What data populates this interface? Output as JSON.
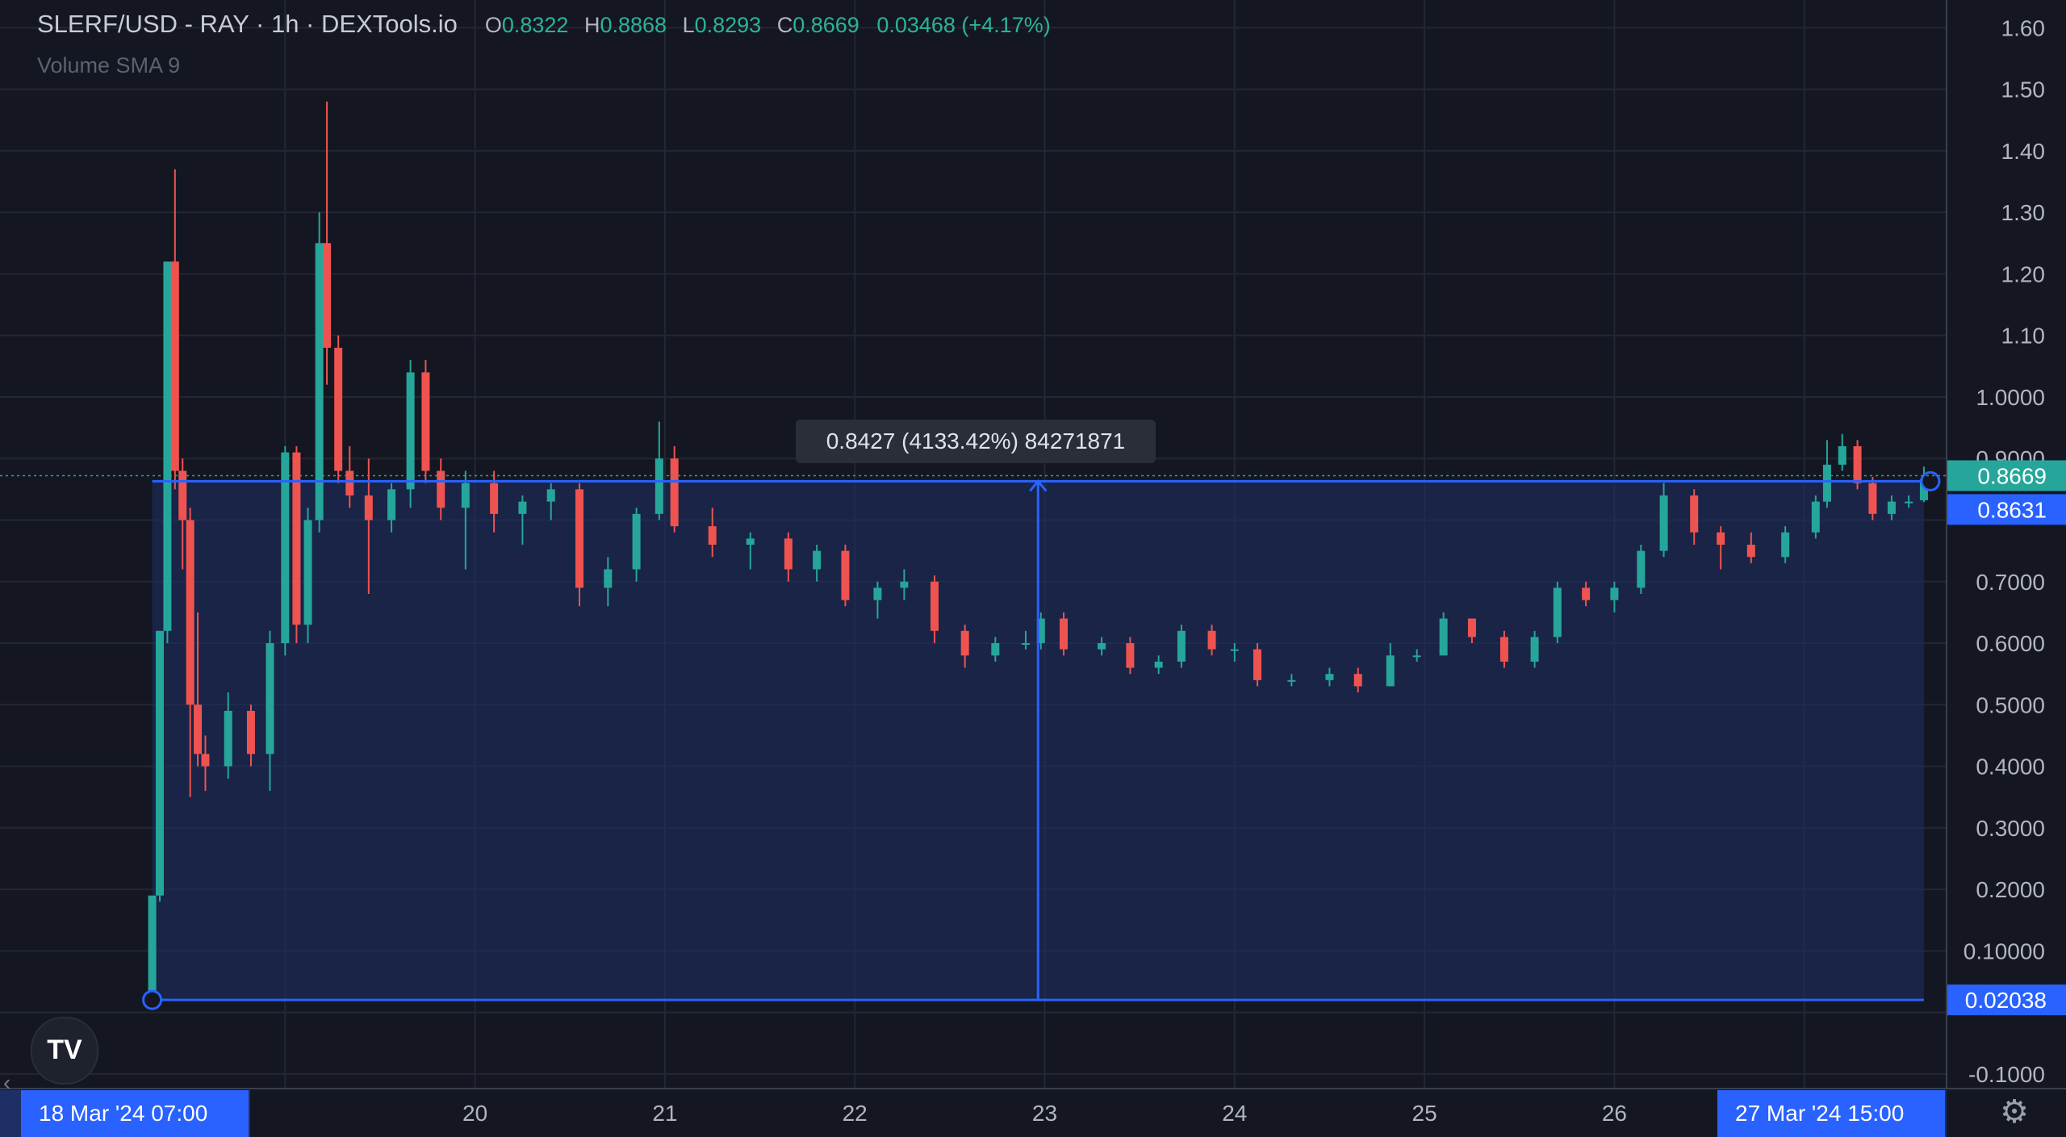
{
  "header": {
    "title": "SLERF/USD - RAY · 1h · DEXTools.io",
    "o_label": "O",
    "o_value": "0.8322",
    "h_label": "H",
    "h_value": "0.8868",
    "l_label": "L",
    "l_value": "0.8293",
    "c_label": "C",
    "c_value": "0.8669",
    "change": "0.03468 (+4.17%)"
  },
  "indicator_label": "Volume SMA 9",
  "measure_tooltip": "0.8427 (4133.42%) 84271871",
  "price_badges": {
    "current": "0.8669",
    "top": "0.8631",
    "bottom": "0.02038"
  },
  "time_badges": {
    "start": "18 Mar '24   07:00",
    "end": "27 Mar '24   15:00"
  },
  "logo_text": "TV",
  "icons": [
    "tradingview-logo-icon",
    "settings-gear-icon",
    "scroll-left-icon"
  ],
  "colors": {
    "up": "#26a69a",
    "down": "#ef5350",
    "accent": "#2962ff",
    "background": "#141722"
  },
  "chart_data": {
    "type": "candlestick",
    "title": "SLERF/USD - RAY · 1h · DEXTools.io",
    "y_ticks": [
      "1.60",
      "1.50",
      "1.40",
      "1.30",
      "1.20",
      "1.10",
      "1.0000",
      "0.9000",
      "0.7000",
      "0.6000",
      "0.5000",
      "0.4000",
      "0.3000",
      "0.2000",
      "0.10000",
      "-0.1000"
    ],
    "y_tick_values": [
      1.6,
      1.5,
      1.4,
      1.3,
      1.2,
      1.1,
      1.0,
      0.9,
      0.7,
      0.6,
      0.5,
      0.4,
      0.3,
      0.2,
      0.1,
      -0.1
    ],
    "x_ticks": [
      "20",
      "21",
      "22",
      "23",
      "24",
      "25",
      "26"
    ],
    "x_tick_days": [
      20,
      21,
      22,
      23,
      24,
      25,
      26
    ],
    "ylim": [
      -0.125,
      1.645
    ],
    "xlim_days": [
      18.02,
      28.4
    ],
    "grid": true,
    "measure_range": {
      "from_price": 0.02038,
      "to_price": 0.8631,
      "change": 0.8427,
      "percent": 4133.42,
      "from_day": 18.3,
      "to_day": 27.63
    },
    "current_price": 0.8669,
    "candles_ohlc_approx": [
      {
        "t": 18.3,
        "o": 0.02,
        "h": 0.02,
        "l": 0.02,
        "c": 0.19
      },
      {
        "t": 18.34,
        "o": 0.19,
        "h": 0.62,
        "l": 0.18,
        "c": 0.62
      },
      {
        "t": 18.38,
        "o": 0.62,
        "h": 1.22,
        "l": 0.6,
        "c": 1.22
      },
      {
        "t": 18.42,
        "o": 1.22,
        "h": 1.37,
        "l": 0.85,
        "c": 0.88
      },
      {
        "t": 18.46,
        "o": 0.88,
        "h": 0.9,
        "l": 0.72,
        "c": 0.8
      },
      {
        "t": 18.5,
        "o": 0.8,
        "h": 0.82,
        "l": 0.35,
        "c": 0.5
      },
      {
        "t": 18.54,
        "o": 0.5,
        "h": 0.65,
        "l": 0.4,
        "c": 0.42
      },
      {
        "t": 18.58,
        "o": 0.42,
        "h": 0.45,
        "l": 0.36,
        "c": 0.4
      },
      {
        "t": 18.7,
        "o": 0.4,
        "h": 0.52,
        "l": 0.38,
        "c": 0.49
      },
      {
        "t": 18.82,
        "o": 0.49,
        "h": 0.5,
        "l": 0.4,
        "c": 0.42
      },
      {
        "t": 18.92,
        "o": 0.42,
        "h": 0.62,
        "l": 0.36,
        "c": 0.6
      },
      {
        "t": 19.0,
        "o": 0.6,
        "h": 0.92,
        "l": 0.58,
        "c": 0.91
      },
      {
        "t": 19.06,
        "o": 0.91,
        "h": 0.92,
        "l": 0.6,
        "c": 0.63
      },
      {
        "t": 19.12,
        "o": 0.63,
        "h": 0.82,
        "l": 0.6,
        "c": 0.8
      },
      {
        "t": 19.18,
        "o": 0.8,
        "h": 1.3,
        "l": 0.78,
        "c": 1.25
      },
      {
        "t": 19.22,
        "o": 1.25,
        "h": 1.48,
        "l": 1.02,
        "c": 1.08
      },
      {
        "t": 19.28,
        "o": 1.08,
        "h": 1.1,
        "l": 0.86,
        "c": 0.88
      },
      {
        "t": 19.34,
        "o": 0.88,
        "h": 0.92,
        "l": 0.82,
        "c": 0.84
      },
      {
        "t": 19.44,
        "o": 0.84,
        "h": 0.9,
        "l": 0.68,
        "c": 0.8
      },
      {
        "t": 19.56,
        "o": 0.8,
        "h": 0.86,
        "l": 0.78,
        "c": 0.85
      },
      {
        "t": 19.66,
        "o": 0.85,
        "h": 1.06,
        "l": 0.82,
        "c": 1.04
      },
      {
        "t": 19.74,
        "o": 1.04,
        "h": 1.06,
        "l": 0.86,
        "c": 0.88
      },
      {
        "t": 19.82,
        "o": 0.88,
        "h": 0.9,
        "l": 0.8,
        "c": 0.82
      },
      {
        "t": 19.95,
        "o": 0.82,
        "h": 0.88,
        "l": 0.72,
        "c": 0.86
      },
      {
        "t": 20.1,
        "o": 0.86,
        "h": 0.88,
        "l": 0.78,
        "c": 0.81
      },
      {
        "t": 20.25,
        "o": 0.81,
        "h": 0.84,
        "l": 0.76,
        "c": 0.83
      },
      {
        "t": 20.4,
        "o": 0.83,
        "h": 0.86,
        "l": 0.8,
        "c": 0.85
      },
      {
        "t": 20.55,
        "o": 0.85,
        "h": 0.86,
        "l": 0.66,
        "c": 0.69
      },
      {
        "t": 20.7,
        "o": 0.69,
        "h": 0.74,
        "l": 0.66,
        "c": 0.72
      },
      {
        "t": 20.85,
        "o": 0.72,
        "h": 0.82,
        "l": 0.7,
        "c": 0.81
      },
      {
        "t": 20.97,
        "o": 0.81,
        "h": 0.96,
        "l": 0.8,
        "c": 0.9
      },
      {
        "t": 21.05,
        "o": 0.9,
        "h": 0.92,
        "l": 0.78,
        "c": 0.79
      },
      {
        "t": 21.25,
        "o": 0.79,
        "h": 0.82,
        "l": 0.74,
        "c": 0.76
      },
      {
        "t": 21.45,
        "o": 0.76,
        "h": 0.78,
        "l": 0.72,
        "c": 0.77
      },
      {
        "t": 21.65,
        "o": 0.77,
        "h": 0.78,
        "l": 0.7,
        "c": 0.72
      },
      {
        "t": 21.8,
        "o": 0.72,
        "h": 0.76,
        "l": 0.7,
        "c": 0.75
      },
      {
        "t": 21.95,
        "o": 0.75,
        "h": 0.76,
        "l": 0.66,
        "c": 0.67
      },
      {
        "t": 22.12,
        "o": 0.67,
        "h": 0.7,
        "l": 0.64,
        "c": 0.69
      },
      {
        "t": 22.26,
        "o": 0.69,
        "h": 0.72,
        "l": 0.67,
        "c": 0.7
      },
      {
        "t": 22.42,
        "o": 0.7,
        "h": 0.71,
        "l": 0.6,
        "c": 0.62
      },
      {
        "t": 22.58,
        "o": 0.62,
        "h": 0.63,
        "l": 0.56,
        "c": 0.58
      },
      {
        "t": 22.74,
        "o": 0.58,
        "h": 0.61,
        "l": 0.57,
        "c": 0.6
      },
      {
        "t": 22.9,
        "o": 0.6,
        "h": 0.62,
        "l": 0.59,
        "c": 0.6
      },
      {
        "t": 22.98,
        "o": 0.6,
        "h": 0.65,
        "l": 0.59,
        "c": 0.64
      },
      {
        "t": 23.1,
        "o": 0.64,
        "h": 0.65,
        "l": 0.58,
        "c": 0.59
      },
      {
        "t": 23.3,
        "o": 0.59,
        "h": 0.61,
        "l": 0.58,
        "c": 0.6
      },
      {
        "t": 23.45,
        "o": 0.6,
        "h": 0.61,
        "l": 0.55,
        "c": 0.56
      },
      {
        "t": 23.6,
        "o": 0.56,
        "h": 0.58,
        "l": 0.55,
        "c": 0.57
      },
      {
        "t": 23.72,
        "o": 0.57,
        "h": 0.63,
        "l": 0.56,
        "c": 0.62
      },
      {
        "t": 23.88,
        "o": 0.62,
        "h": 0.63,
        "l": 0.58,
        "c": 0.59
      },
      {
        "t": 24.0,
        "o": 0.59,
        "h": 0.6,
        "l": 0.57,
        "c": 0.59
      },
      {
        "t": 24.12,
        "o": 0.59,
        "h": 0.6,
        "l": 0.53,
        "c": 0.54
      },
      {
        "t": 24.3,
        "o": 0.54,
        "h": 0.55,
        "l": 0.53,
        "c": 0.54
      },
      {
        "t": 24.5,
        "o": 0.54,
        "h": 0.56,
        "l": 0.53,
        "c": 0.55
      },
      {
        "t": 24.65,
        "o": 0.55,
        "h": 0.56,
        "l": 0.52,
        "c": 0.53
      },
      {
        "t": 24.82,
        "o": 0.53,
        "h": 0.6,
        "l": 0.53,
        "c": 0.58
      },
      {
        "t": 24.96,
        "o": 0.58,
        "h": 0.59,
        "l": 0.57,
        "c": 0.58
      },
      {
        "t": 25.1,
        "o": 0.58,
        "h": 0.65,
        "l": 0.58,
        "c": 0.64
      },
      {
        "t": 25.25,
        "o": 0.64,
        "h": 0.64,
        "l": 0.6,
        "c": 0.61
      },
      {
        "t": 25.42,
        "o": 0.61,
        "h": 0.62,
        "l": 0.56,
        "c": 0.57
      },
      {
        "t": 25.58,
        "o": 0.57,
        "h": 0.62,
        "l": 0.56,
        "c": 0.61
      },
      {
        "t": 25.7,
        "o": 0.61,
        "h": 0.7,
        "l": 0.6,
        "c": 0.69
      },
      {
        "t": 25.85,
        "o": 0.69,
        "h": 0.7,
        "l": 0.66,
        "c": 0.67
      },
      {
        "t": 26.0,
        "o": 0.67,
        "h": 0.7,
        "l": 0.65,
        "c": 0.69
      },
      {
        "t": 26.14,
        "o": 0.69,
        "h": 0.76,
        "l": 0.68,
        "c": 0.75
      },
      {
        "t": 26.26,
        "o": 0.75,
        "h": 0.86,
        "l": 0.74,
        "c": 0.84
      },
      {
        "t": 26.42,
        "o": 0.84,
        "h": 0.85,
        "l": 0.76,
        "c": 0.78
      },
      {
        "t": 26.56,
        "o": 0.78,
        "h": 0.79,
        "l": 0.72,
        "c": 0.76
      },
      {
        "t": 26.72,
        "o": 0.76,
        "h": 0.78,
        "l": 0.73,
        "c": 0.74
      },
      {
        "t": 26.9,
        "o": 0.74,
        "h": 0.79,
        "l": 0.73,
        "c": 0.78
      },
      {
        "t": 27.06,
        "o": 0.78,
        "h": 0.84,
        "l": 0.77,
        "c": 0.83
      },
      {
        "t": 27.12,
        "o": 0.83,
        "h": 0.93,
        "l": 0.82,
        "c": 0.89
      },
      {
        "t": 27.2,
        "o": 0.89,
        "h": 0.94,
        "l": 0.88,
        "c": 0.92
      },
      {
        "t": 27.28,
        "o": 0.92,
        "h": 0.93,
        "l": 0.85,
        "c": 0.86
      },
      {
        "t": 27.36,
        "o": 0.86,
        "h": 0.87,
        "l": 0.8,
        "c": 0.81
      },
      {
        "t": 27.46,
        "o": 0.81,
        "h": 0.84,
        "l": 0.8,
        "c": 0.83
      },
      {
        "t": 27.55,
        "o": 0.83,
        "h": 0.84,
        "l": 0.82,
        "c": 0.83
      },
      {
        "t": 27.63,
        "o": 0.8322,
        "h": 0.8868,
        "l": 0.8293,
        "c": 0.8669
      }
    ]
  }
}
